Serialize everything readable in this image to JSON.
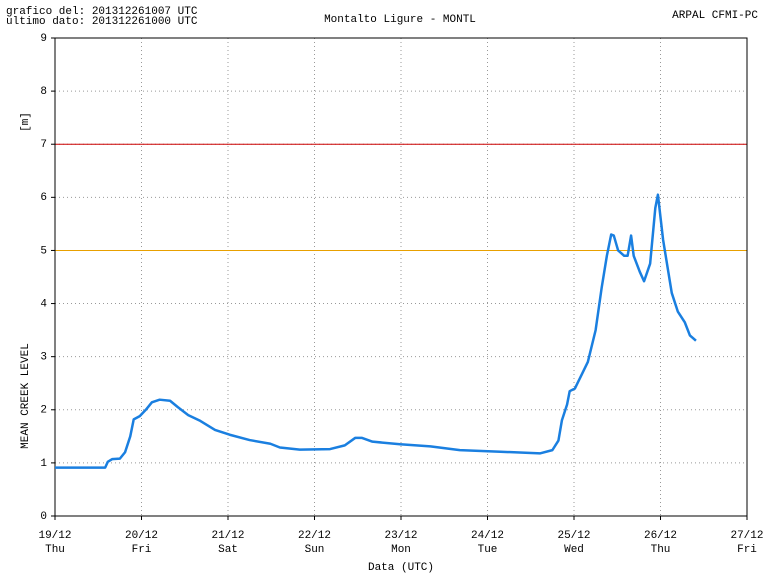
{
  "chart_data": {
    "type": "line",
    "title": "Montalto Ligure - MONTL",
    "header_left": [
      "grafico del: 201312261007 UTC",
      "ultimo dato: 201312261000 UTC"
    ],
    "header_right": "ARPAL CFMI-PC",
    "ylabel": "[m]",
    "ylabel_secondary": "MEAN CREEK LEVEL",
    "xlabel": "Data (UTC)",
    "xlim": [
      0,
      8
    ],
    "xticks": [
      {
        "value": 0,
        "label": "19/12"
      },
      {
        "value": 1,
        "label": "20/12"
      },
      {
        "value": 2,
        "label": "21/12"
      },
      {
        "value": 3,
        "label": "22/12"
      },
      {
        "value": 4,
        "label": "23/12"
      },
      {
        "value": 5,
        "label": "24/12"
      },
      {
        "value": 6,
        "label": "25/12"
      },
      {
        "value": 7,
        "label": "26/12"
      },
      {
        "value": 8,
        "label": "27/12"
      }
    ],
    "xtick_weekdays": [
      "Thu",
      "Fri",
      "Sat",
      "Sun",
      "Mon",
      "Tue",
      "Wed",
      "Thu",
      "Fri"
    ],
    "ylim": [
      0,
      9
    ],
    "yticks": [
      0,
      1,
      2,
      3,
      4,
      5,
      6,
      7,
      8,
      9
    ],
    "grid": true,
    "thresholds": [
      {
        "value": 7,
        "color": "#cc0000"
      },
      {
        "value": 5,
        "color": "#e8a000"
      }
    ],
    "series": [
      {
        "color": "#1a7fe0",
        "x": [
          0,
          0.58,
          0.61,
          0.66,
          0.75,
          0.81,
          0.87,
          0.91,
          0.98,
          1.05,
          1.12,
          1.21,
          1.33,
          1.42,
          1.54,
          1.68,
          1.85,
          2.02,
          2.25,
          2.49,
          2.6,
          2.83,
          3.18,
          3.35,
          3.47,
          3.55,
          3.67,
          3.99,
          4.34,
          4.68,
          5.15,
          5.61,
          5.75,
          5.82,
          5.86,
          5.92,
          5.95,
          6.01,
          6.07,
          6.16,
          6.25,
          6.32,
          6.38,
          6.43,
          6.46,
          6.51,
          6.58,
          6.62,
          6.66,
          6.69,
          6.76,
          6.81,
          6.88,
          6.94,
          6.97,
          7.03,
          7.09,
          7.13,
          7.2,
          7.28,
          7.34,
          7.41
        ],
        "values": [
          0.91,
          0.91,
          1.02,
          1.07,
          1.08,
          1.2,
          1.5,
          1.82,
          1.88,
          2.0,
          2.14,
          2.19,
          2.17,
          2.05,
          1.9,
          1.79,
          1.62,
          1.53,
          1.43,
          1.36,
          1.29,
          1.25,
          1.26,
          1.33,
          1.47,
          1.47,
          1.4,
          1.35,
          1.31,
          1.24,
          1.21,
          1.18,
          1.24,
          1.42,
          1.8,
          2.1,
          2.35,
          2.4,
          2.6,
          2.9,
          3.5,
          4.3,
          4.9,
          5.3,
          5.28,
          5.0,
          4.9,
          4.9,
          5.28,
          4.9,
          4.6,
          4.42,
          4.75,
          5.8,
          6.05,
          5.2,
          4.6,
          4.2,
          3.85,
          3.65,
          3.4,
          3.3
        ]
      }
    ]
  }
}
